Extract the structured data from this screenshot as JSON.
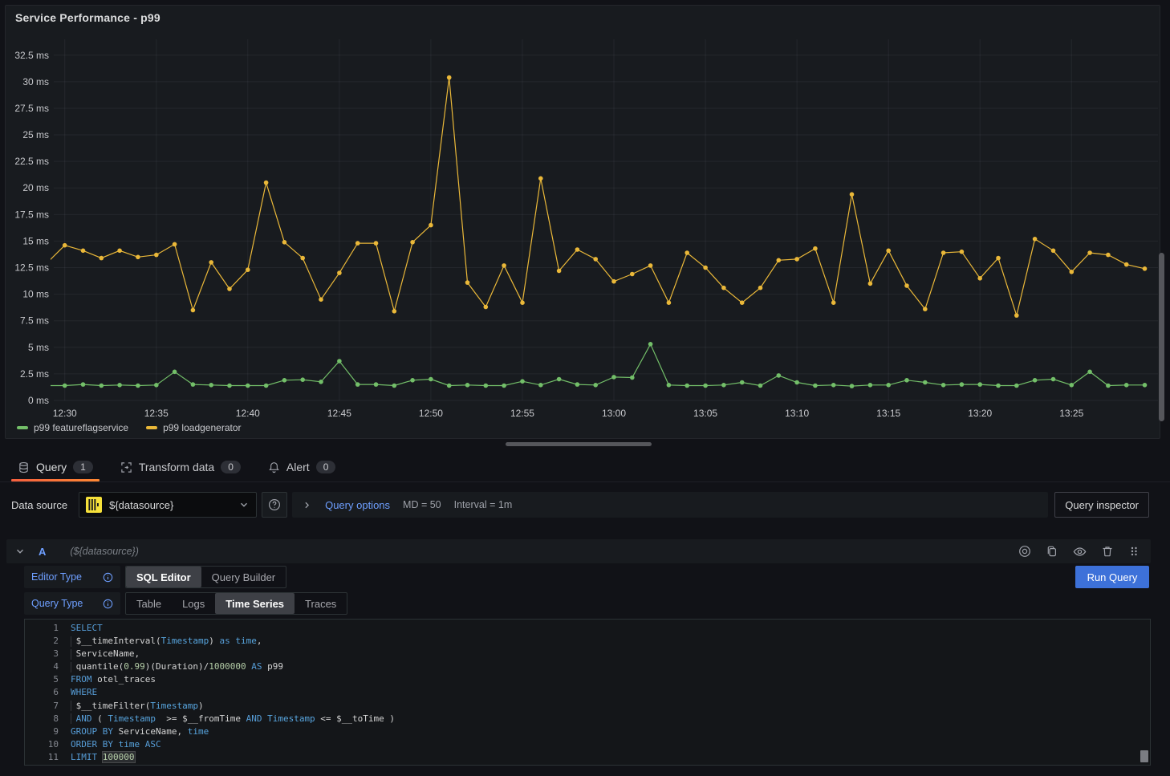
{
  "panel": {
    "title": "Service Performance - p99",
    "legend": [
      {
        "label": "p99 featureflagservice",
        "color": "#73BF69"
      },
      {
        "label": "p99 loadgenerator",
        "color": "#EAB839"
      }
    ]
  },
  "chart_data": {
    "type": "line",
    "title": "Service Performance - p99",
    "unit": "ms",
    "ylim": [
      0,
      34
    ],
    "grid": true,
    "legend_position": "bottom-left",
    "y_ticks": [
      "0 ms",
      "2.5 ms",
      "5 ms",
      "7.5 ms",
      "10 ms",
      "12.5 ms",
      "15 ms",
      "17.5 ms",
      "20 ms",
      "22.5 ms",
      "25 ms",
      "27.5 ms",
      "30 ms",
      "32.5 ms"
    ],
    "x_ticks": [
      "12:30",
      "12:35",
      "12:40",
      "12:45",
      "12:50",
      "12:55",
      "13:00",
      "13:05",
      "13:10",
      "13:15",
      "13:20",
      "13:25"
    ],
    "x": [
      "12:29",
      "12:30",
      "12:31",
      "12:32",
      "12:33",
      "12:34",
      "12:35",
      "12:36",
      "12:37",
      "12:38",
      "12:39",
      "12:40",
      "12:41",
      "12:42",
      "12:43",
      "12:44",
      "12:45",
      "12:46",
      "12:47",
      "12:48",
      "12:49",
      "12:50",
      "12:51",
      "12:52",
      "12:53",
      "12:54",
      "12:55",
      "12:56",
      "12:57",
      "12:58",
      "12:59",
      "13:00",
      "13:01",
      "13:02",
      "13:03",
      "13:04",
      "13:05",
      "13:06",
      "13:07",
      "13:08",
      "13:09",
      "13:10",
      "13:11",
      "13:12",
      "13:13",
      "13:14",
      "13:15",
      "13:16",
      "13:17",
      "13:18",
      "13:19",
      "13:20",
      "13:21",
      "13:22",
      "13:23",
      "13:24",
      "13:25",
      "13:26",
      "13:27",
      "13:28",
      "13:29"
    ],
    "series": [
      {
        "name": "p99 featureflagservice",
        "color": "#73BF69",
        "values": [
          1.4,
          1.4,
          1.5,
          1.4,
          1.45,
          1.4,
          1.45,
          2.7,
          1.5,
          1.45,
          1.4,
          1.4,
          1.4,
          1.9,
          1.95,
          1.75,
          3.7,
          1.5,
          1.5,
          1.4,
          1.9,
          2.0,
          1.4,
          1.45,
          1.4,
          1.4,
          1.8,
          1.45,
          2.0,
          1.5,
          1.45,
          2.2,
          2.15,
          5.3,
          1.45,
          1.4,
          1.4,
          1.45,
          1.7,
          1.4,
          2.35,
          1.7,
          1.4,
          1.45,
          1.35,
          1.45,
          1.45,
          1.9,
          1.7,
          1.45,
          1.5,
          1.5,
          1.4,
          1.4,
          1.9,
          2.0,
          1.45,
          2.7,
          1.4,
          1.45,
          1.45
        ]
      },
      {
        "name": "p99 loadgenerator",
        "color": "#EAB839",
        "values": [
          12.9,
          14.6,
          14.1,
          13.4,
          14.1,
          13.5,
          13.7,
          14.7,
          8.5,
          13.0,
          10.5,
          12.3,
          20.5,
          14.9,
          13.4,
          9.5,
          12.0,
          14.8,
          14.8,
          8.4,
          14.9,
          16.5,
          30.4,
          11.1,
          8.8,
          12.7,
          9.2,
          20.9,
          12.2,
          14.2,
          13.3,
          11.2,
          11.9,
          12.7,
          9.2,
          13.9,
          12.5,
          10.6,
          9.2,
          10.6,
          13.2,
          13.3,
          14.3,
          9.2,
          19.4,
          11.0,
          14.1,
          10.8,
          8.6,
          13.9,
          14.0,
          11.5,
          13.4,
          8.0,
          15.2,
          14.1,
          12.1,
          13.9,
          13.7,
          12.8,
          12.4
        ]
      }
    ]
  },
  "tabs": [
    {
      "label": "Query",
      "badge": "1",
      "icon": "database-icon",
      "active": true
    },
    {
      "label": "Transform data",
      "badge": "0",
      "icon": "transform-icon",
      "active": false
    },
    {
      "label": "Alert",
      "badge": "0",
      "icon": "bell-icon",
      "active": false
    }
  ],
  "toolbar": {
    "datasource_label": "Data source",
    "datasource_value": "${datasource}",
    "datasource_icon": "clickhouse-logo-icon",
    "help_icon": "question-circle-icon",
    "query_options_label": "Query options",
    "md": "MD = 50",
    "interval": "Interval = 1m",
    "query_inspector_label": "Query inspector"
  },
  "query_row": {
    "ref_id": "A",
    "datasource_hint": "(${datasource})",
    "icons": [
      "disable-query-icon",
      "duplicate-icon",
      "hide-response-icon",
      "trash-icon",
      "drag-handle-icon"
    ]
  },
  "editor": {
    "editor_type_label": "Editor Type",
    "editor_type_options": [
      "SQL Editor",
      "Query Builder"
    ],
    "editor_type_active": "SQL Editor",
    "query_type_label": "Query Type",
    "query_type_options": [
      "Table",
      "Logs",
      "Time Series",
      "Traces"
    ],
    "query_type_active": "Time Series",
    "run_query_label": "Run Query",
    "sql_lines": [
      {
        "n": "1",
        "g": false,
        "t": [
          [
            "kw",
            "SELECT"
          ]
        ]
      },
      {
        "n": "2",
        "g": true,
        "t": [
          [
            "id",
            " $__timeInterval("
          ],
          [
            "var",
            "Timestamp"
          ],
          [
            "id",
            ") "
          ],
          [
            "kw",
            "as"
          ],
          [
            "id",
            " "
          ],
          [
            "var",
            "time"
          ],
          [
            "id",
            ","
          ]
        ]
      },
      {
        "n": "3",
        "g": true,
        "t": [
          [
            "id",
            " ServiceName,"
          ]
        ]
      },
      {
        "n": "4",
        "g": true,
        "t": [
          [
            "id",
            " quantile("
          ],
          [
            "num",
            "0.99"
          ],
          [
            "id",
            ")(Duration)/"
          ],
          [
            "num",
            "1000000"
          ],
          [
            "id",
            " "
          ],
          [
            "kw",
            "AS"
          ],
          [
            "id",
            " p99"
          ]
        ]
      },
      {
        "n": "5",
        "g": false,
        "t": [
          [
            "kw",
            "FROM"
          ],
          [
            "id",
            " otel_traces"
          ]
        ]
      },
      {
        "n": "6",
        "g": false,
        "t": [
          [
            "kw",
            "WHERE"
          ]
        ]
      },
      {
        "n": "7",
        "g": true,
        "t": [
          [
            "id",
            " $__timeFilter("
          ],
          [
            "var",
            "Timestamp"
          ],
          [
            "id",
            ")"
          ]
        ]
      },
      {
        "n": "8",
        "g": true,
        "t": [
          [
            "id",
            " "
          ],
          [
            "kw",
            "AND"
          ],
          [
            "id",
            " ( "
          ],
          [
            "var",
            "Timestamp"
          ],
          [
            "id",
            "  >= $__fromTime "
          ],
          [
            "kw",
            "AND"
          ],
          [
            "id",
            " "
          ],
          [
            "var",
            "Timestamp"
          ],
          [
            "id",
            " <= $__toTime )"
          ]
        ]
      },
      {
        "n": "9",
        "g": false,
        "t": [
          [
            "kw",
            "GROUP BY"
          ],
          [
            "id",
            " ServiceName, "
          ],
          [
            "var",
            "time"
          ]
        ]
      },
      {
        "n": "10",
        "g": false,
        "t": [
          [
            "kw",
            "ORDER BY"
          ],
          [
            "id",
            " "
          ],
          [
            "var",
            "time"
          ],
          [
            "id",
            " "
          ],
          [
            "kw",
            "ASC"
          ]
        ]
      },
      {
        "n": "11",
        "g": false,
        "t": [
          [
            "kw",
            "LIMIT"
          ],
          [
            "id",
            " "
          ],
          [
            "num sel",
            "100000"
          ]
        ]
      }
    ]
  },
  "colors": {
    "page_bg": "#111217",
    "panel_bg": "#181B1F",
    "accent_blue": "#3D71D9",
    "link_blue": "#6E9FFF",
    "tab_active_underline": "#FF7038",
    "series_green": "#73BF69",
    "series_yellow": "#EAB839"
  }
}
